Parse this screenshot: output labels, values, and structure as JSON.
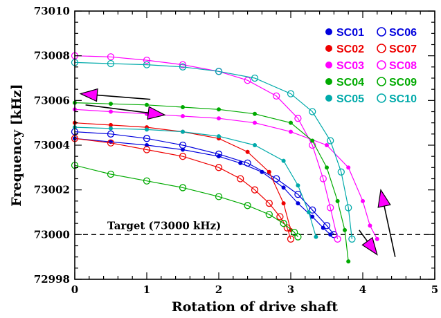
{
  "chart_data": {
    "type": "line",
    "title": "",
    "xlabel": "Rotation of drive shaft",
    "ylabel": "Frequency [kHz]",
    "xlim": [
      0,
      5
    ],
    "ylim": [
      72998,
      73010
    ],
    "x_ticks": [
      0,
      1,
      2,
      3,
      4,
      5
    ],
    "y_ticks": [
      72998,
      73000,
      73002,
      73004,
      73006,
      73008,
      73010
    ],
    "x_tick_labels": [
      "0",
      "1",
      "2",
      "3",
      "4",
      "5"
    ],
    "y_tick_labels": [
      "72998",
      "73000",
      "73002",
      "73004",
      "73006",
      "73008",
      "73010"
    ],
    "grid": false,
    "legend_position": "top-right",
    "target": {
      "label": "Target (73000 kHz)",
      "y": 73000
    },
    "series": [
      {
        "name": "SC01",
        "color": "#0000dd",
        "marker": "filled",
        "x": [
          0,
          0.5,
          1,
          1.5,
          2,
          2.3,
          2.6,
          2.9,
          3.1,
          3.3,
          3.45,
          3.55
        ],
        "y": [
          73004.3,
          73004.15,
          73004.0,
          73003.8,
          73003.5,
          73003.2,
          73002.8,
          73002.1,
          73001.4,
          73000.8,
          73000.3,
          73000.0
        ]
      },
      {
        "name": "SC06",
        "color": "#0000dd",
        "marker": "open",
        "x": [
          0,
          0.5,
          1,
          1.5,
          2,
          2.4,
          2.8,
          3.1,
          3.3,
          3.5,
          3.6
        ],
        "y": [
          73004.6,
          73004.5,
          73004.3,
          73004.0,
          73003.6,
          73003.2,
          73002.5,
          73001.8,
          73001.1,
          73000.4,
          73000.0
        ]
      },
      {
        "name": "SC02",
        "color": "#ee0000",
        "marker": "filled",
        "x": [
          0,
          0.5,
          1,
          1.5,
          2,
          2.4,
          2.7,
          2.9,
          3.0
        ],
        "y": [
          73005.0,
          73004.9,
          73004.8,
          73004.6,
          73004.3,
          73003.7,
          73002.8,
          73001.4,
          73000.2
        ]
      },
      {
        "name": "SC07",
        "color": "#ee0000",
        "marker": "open",
        "x": [
          0,
          0.5,
          1,
          1.5,
          2,
          2.3,
          2.5,
          2.7,
          2.85,
          2.95,
          3.0
        ],
        "y": [
          73004.3,
          73004.1,
          73003.8,
          73003.5,
          73003.0,
          73002.5,
          73002.0,
          73001.4,
          73000.8,
          73000.3,
          72999.8
        ]
      },
      {
        "name": "SC03",
        "color": "#ff00ff",
        "marker": "filled",
        "x": [
          0,
          0.5,
          1,
          1.5,
          2,
          2.5,
          3,
          3.5,
          3.8,
          4.0,
          4.1,
          4.2
        ],
        "y": [
          73005.6,
          73005.5,
          73005.4,
          73005.3,
          73005.2,
          73005.0,
          73004.6,
          73004.0,
          73003.0,
          73001.5,
          73000.4,
          72999.8
        ]
      },
      {
        "name": "SC08",
        "color": "#ff00ff",
        "marker": "open",
        "x": [
          0,
          0.5,
          1,
          1.5,
          2,
          2.4,
          2.8,
          3.1,
          3.3,
          3.45,
          3.55,
          3.65
        ],
        "y": [
          73008.0,
          73007.95,
          73007.8,
          73007.6,
          73007.3,
          73006.9,
          73006.2,
          73005.2,
          73004.0,
          73002.5,
          73001.2,
          72999.8
        ]
      },
      {
        "name": "SC04",
        "color": "#00aa00",
        "marker": "filled",
        "x": [
          0,
          0.5,
          1,
          1.5,
          2,
          2.5,
          3,
          3.3,
          3.5,
          3.65,
          3.75,
          3.8
        ],
        "y": [
          73005.9,
          73005.85,
          73005.8,
          73005.7,
          73005.6,
          73005.4,
          73005.0,
          73004.2,
          73003.0,
          73001.5,
          73000.2,
          72998.8
        ]
      },
      {
        "name": "SC09",
        "color": "#00aa00",
        "marker": "open",
        "x": [
          0,
          0.5,
          1,
          1.5,
          2,
          2.4,
          2.7,
          2.9,
          3.05,
          3.1
        ],
        "y": [
          73003.1,
          73002.7,
          73002.4,
          73002.1,
          73001.7,
          73001.3,
          73000.9,
          73000.5,
          73000.1,
          72999.9
        ]
      },
      {
        "name": "SC05",
        "color": "#00aaaa",
        "marker": "filled",
        "x": [
          0,
          0.5,
          1,
          1.5,
          2,
          2.5,
          2.9,
          3.1,
          3.25,
          3.35
        ],
        "y": [
          73004.8,
          73004.75,
          73004.7,
          73004.6,
          73004.4,
          73004.0,
          73003.3,
          73002.2,
          73001.0,
          72999.9
        ]
      },
      {
        "name": "SC10",
        "color": "#00aaaa",
        "marker": "open",
        "x": [
          0,
          0.5,
          1,
          1.5,
          2,
          2.5,
          3,
          3.3,
          3.55,
          3.7,
          3.8,
          3.85
        ],
        "y": [
          73007.7,
          73007.65,
          73007.6,
          73007.5,
          73007.3,
          73007.0,
          73006.3,
          73005.5,
          73004.2,
          73002.8,
          73001.2,
          72999.8
        ]
      }
    ],
    "annotations": [
      {
        "type": "arrow",
        "color": "#ff00ff",
        "from": [
          1.05,
          73006.05
        ],
        "to": [
          0.08,
          73006.3
        ]
      },
      {
        "type": "arrow",
        "color": "#ff00ff",
        "from": [
          0.15,
          73005.8
        ],
        "to": [
          1.25,
          73005.35
        ]
      },
      {
        "type": "arrow",
        "color": "#ff00ff",
        "from": [
          3.95,
          73000.2
        ],
        "to": [
          4.2,
          72999.1
        ]
      },
      {
        "type": "arrow",
        "color": "#ff00ff",
        "from": [
          4.45,
          72999.0
        ],
        "to": [
          4.25,
          73002.0
        ]
      }
    ]
  }
}
